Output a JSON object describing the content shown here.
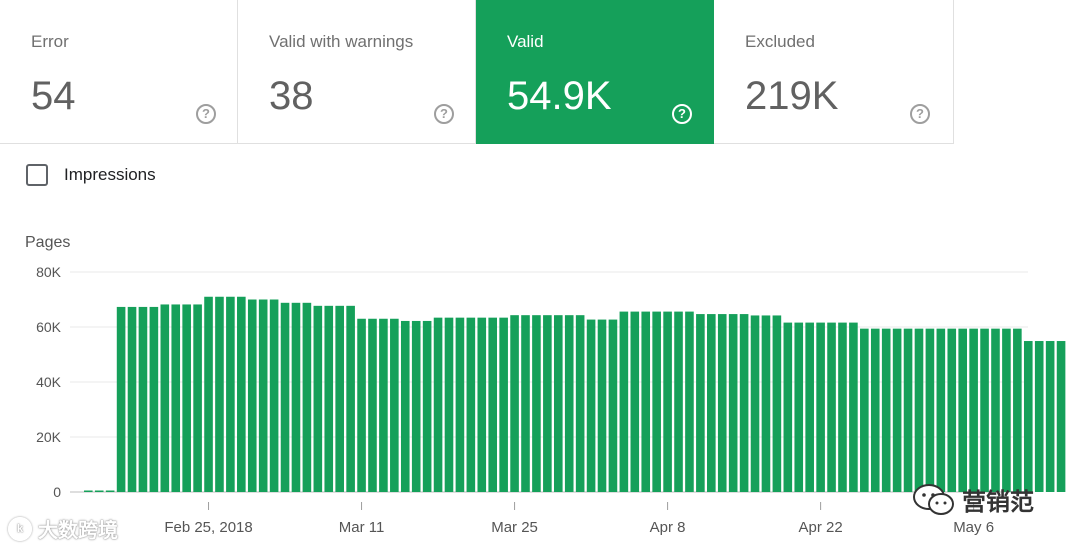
{
  "tiles": [
    {
      "label": "Error",
      "value": "54",
      "help_icon": "help-circle-icon",
      "selected": false
    },
    {
      "label": "Valid with warnings",
      "value": "38",
      "help_icon": "help-circle-icon",
      "selected": false
    },
    {
      "label": "Valid",
      "value": "54.9K",
      "help_icon": "help-circle-icon",
      "selected": true
    },
    {
      "label": "Excluded",
      "value": "219K",
      "help_icon": "help-circle-icon",
      "selected": false
    }
  ],
  "impressions": {
    "label": "Impressions",
    "checked": false
  },
  "colors": {
    "valid": "#15a05a",
    "grid": "#e8e8e8",
    "axis_text": "#555555"
  },
  "watermark": {
    "left_text": "大数跨境",
    "right_text": "营销范"
  },
  "chart_data": {
    "type": "bar",
    "ylabel": "Pages",
    "ylim": [
      0,
      80000
    ],
    "yticks": [
      0,
      20000,
      40000,
      60000,
      80000
    ],
    "ytick_labels": [
      "0",
      "20K",
      "40K",
      "60K",
      "80K"
    ],
    "x_tick_labels": [
      {
        "label": "Feb 25, 2018",
        "index": 11
      },
      {
        "label": "Mar 11",
        "index": 25
      },
      {
        "label": "Mar 25",
        "index": 39
      },
      {
        "label": "Apr 8",
        "index": 53
      },
      {
        "label": "Apr 22",
        "index": 67
      },
      {
        "label": "May 6",
        "index": 81
      }
    ],
    "grid": true,
    "series": [
      {
        "color": "#15a05a",
        "values": [
          100,
          100,
          100,
          67300,
          67300,
          67300,
          67300,
          68200,
          68200,
          68200,
          68200,
          71000,
          71000,
          71000,
          71000,
          70000,
          70000,
          70000,
          68800,
          68800,
          68800,
          67700,
          67700,
          67700,
          67700,
          63000,
          63000,
          63000,
          63000,
          62200,
          62200,
          62200,
          63400,
          63400,
          63400,
          63400,
          63400,
          63400,
          63400,
          64300,
          64300,
          64300,
          64300,
          64300,
          64300,
          64300,
          62700,
          62700,
          62700,
          65600,
          65600,
          65600,
          65600,
          65600,
          65600,
          65600,
          64700,
          64700,
          64700,
          64700,
          64700,
          64200,
          64200,
          64200,
          61600,
          61600,
          61600,
          61600,
          61600,
          61600,
          61600,
          59400,
          59400,
          59400,
          59400,
          59400,
          59400,
          59400,
          59400,
          59400,
          59400,
          59400,
          59400,
          59400,
          59400,
          59400,
          54900,
          54900,
          54900,
          54900
        ]
      }
    ]
  }
}
